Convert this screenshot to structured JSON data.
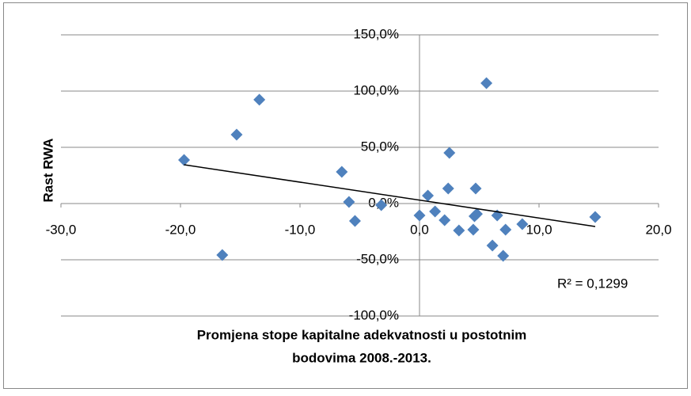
{
  "chart_data": {
    "type": "scatter",
    "x_label": [
      "Promjena stope kapitalne adekvatnosti u postotnim",
      "bodovima 2008.-2013."
    ],
    "y_label": "Rast RWA",
    "annotation": "R² = 0,1299",
    "color": "#4f81bd",
    "grid": true,
    "xlim": [
      -30,
      20
    ],
    "xticks": [
      {
        "value": -30,
        "label": "-30,0"
      },
      {
        "value": -20,
        "label": "-20,0"
      },
      {
        "value": -10,
        "label": "-10,0"
      },
      {
        "value": 0,
        "label": "0,0"
      },
      {
        "value": 10,
        "label": "10,0"
      },
      {
        "value": 20,
        "label": "20,0"
      }
    ],
    "ylim": [
      -100,
      150
    ],
    "yticks": [
      {
        "value": -100,
        "label": "-100,0%"
      },
      {
        "value": -50,
        "label": "-50,0%"
      },
      {
        "value": 0,
        "label": "0,0%"
      },
      {
        "value": 50,
        "label": "50,0%"
      },
      {
        "value": 100,
        "label": "100,0%"
      },
      {
        "value": 150,
        "label": "150,0%"
      }
    ],
    "x": [
      -19.7,
      -15.3,
      -13.4,
      -16.5,
      -6.5,
      -5.9,
      -5.4,
      -3.2,
      0.0,
      0.7,
      1.3,
      2.1,
      2.4,
      2.5,
      3.3,
      4.5,
      4.6,
      4.7,
      4.8,
      5.6,
      6.1,
      6.5,
      7.0,
      7.2,
      8.6,
      14.7
    ],
    "values": [
      38.7,
      61.3,
      92.3,
      -45.8,
      28.2,
      1.4,
      -15.5,
      -1.4,
      -10.6,
      7.0,
      -7.0,
      -14.8,
      13.4,
      45.1,
      -23.9,
      -23.2,
      -11.3,
      13.4,
      -9.2,
      107.0,
      -37.3,
      -10.6,
      -46.5,
      -23.2,
      -18.3,
      -12.0
    ],
    "trendline": {
      "x": [
        -19.7,
        14.7
      ],
      "y": [
        34.5,
        -20.4
      ],
      "color": "#000000"
    }
  }
}
